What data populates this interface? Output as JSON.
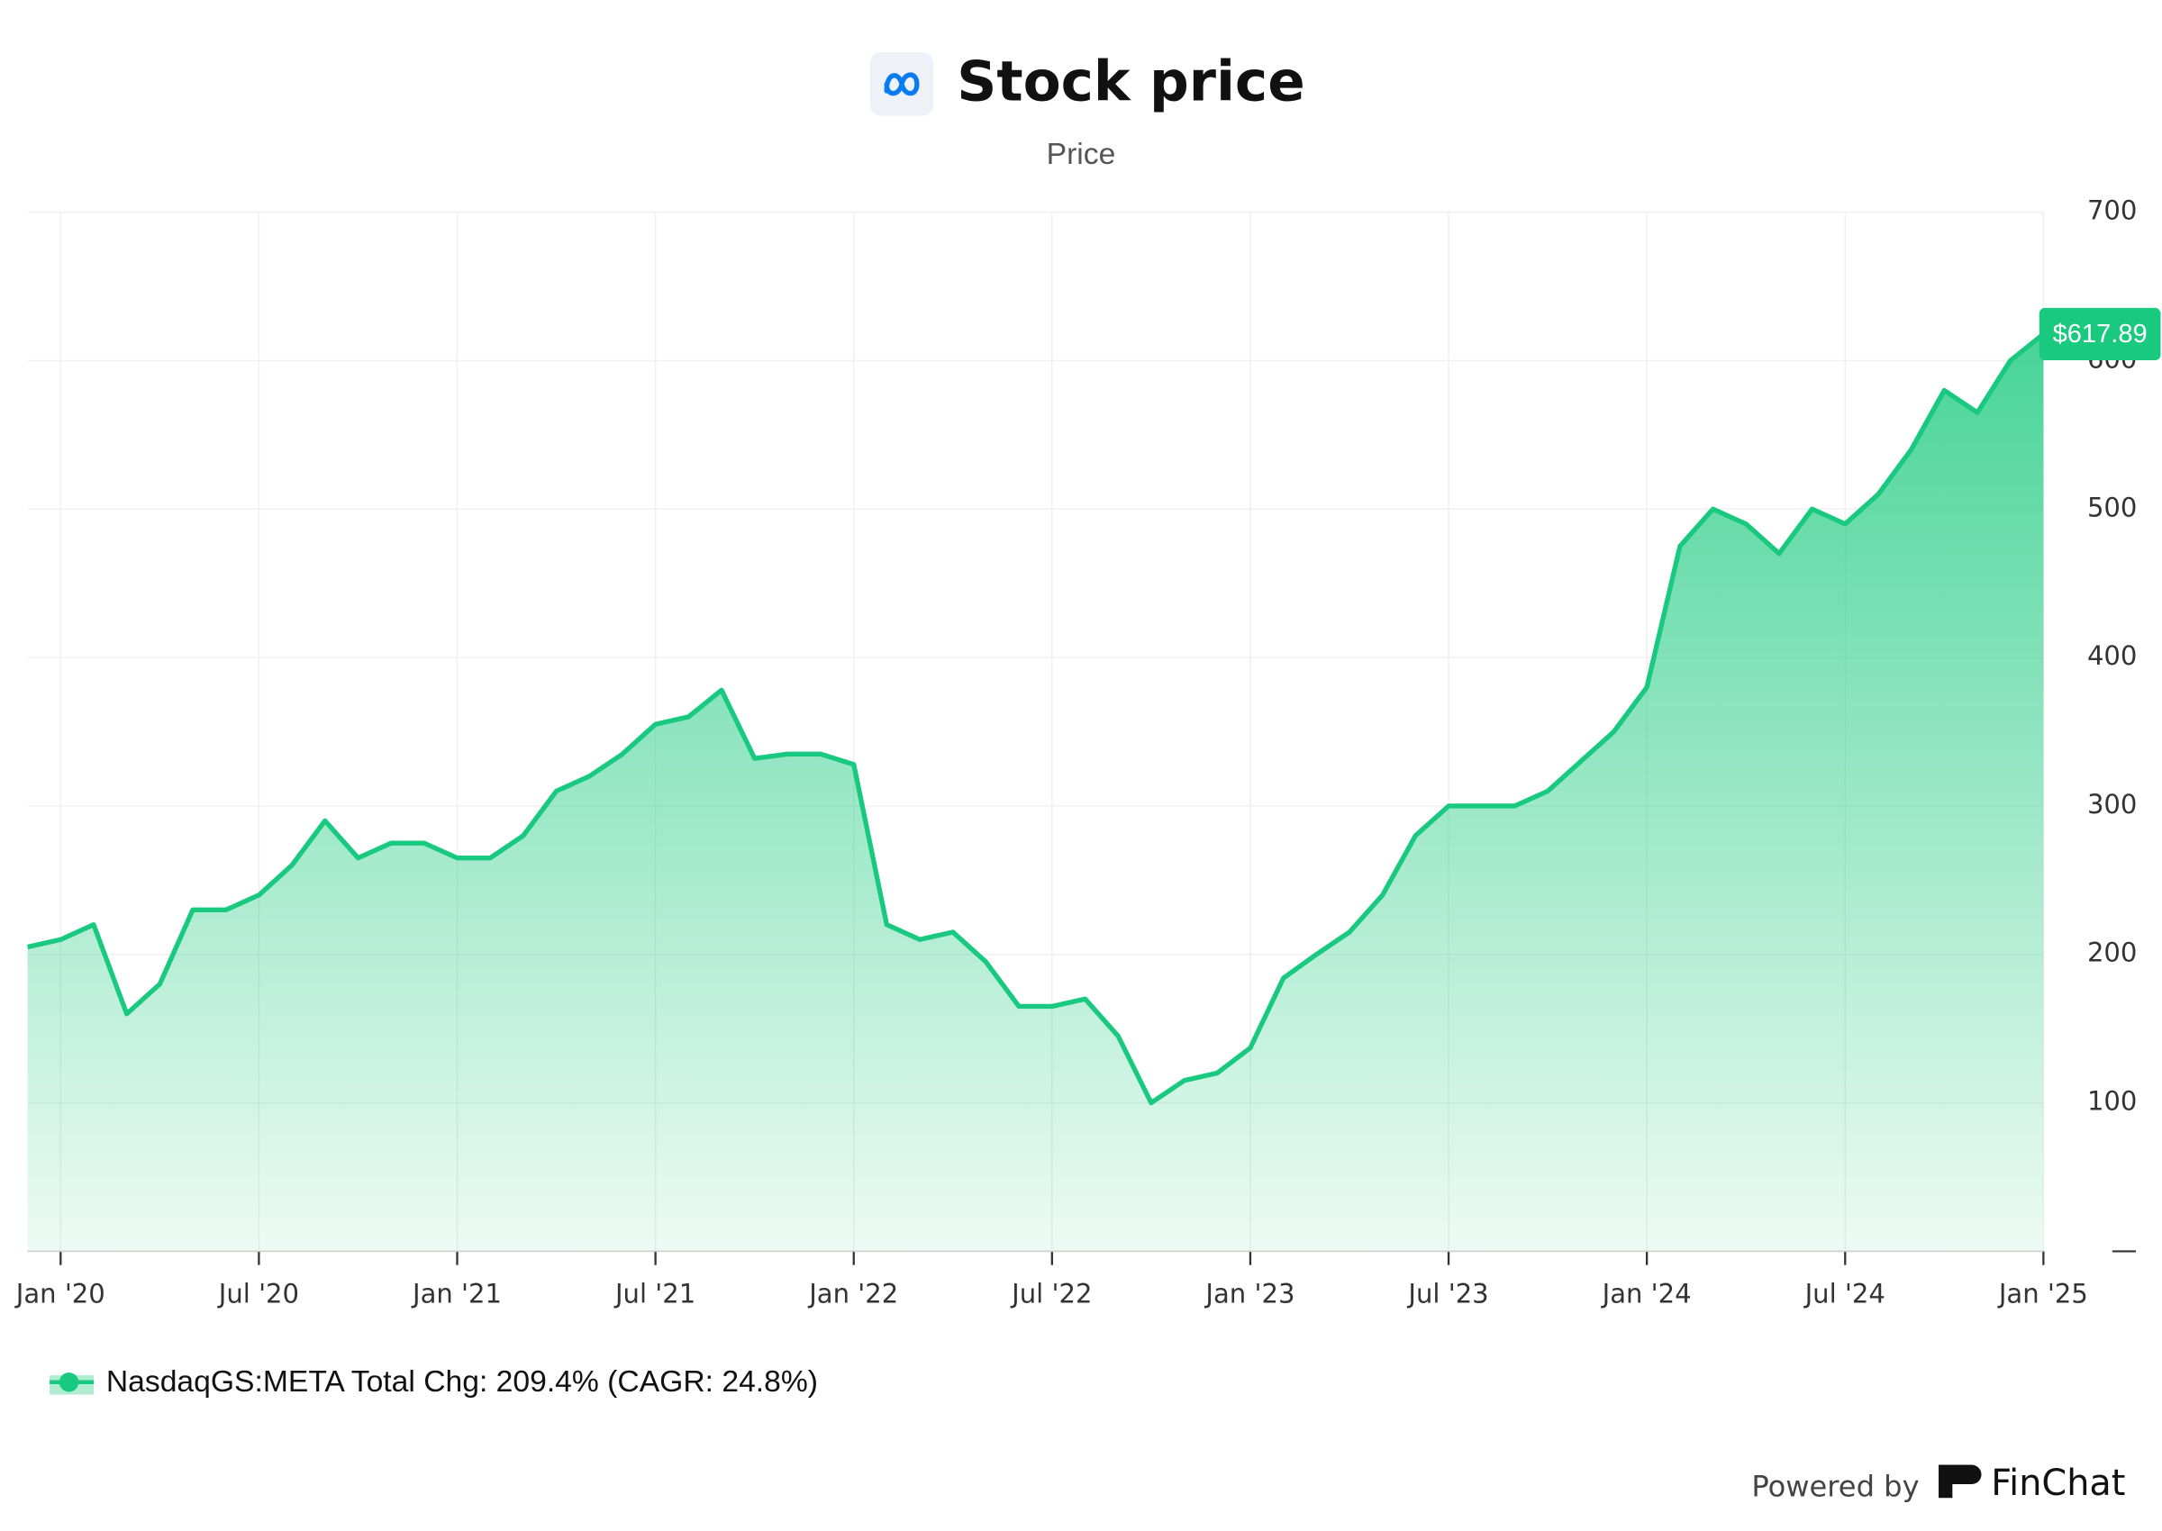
{
  "chart_data": {
    "type": "area",
    "title": "Stock price",
    "subtitle": "Price",
    "x": [
      "2019-12",
      "2020-01",
      "2020-02",
      "2020-03",
      "2020-04",
      "2020-05",
      "2020-06",
      "2020-07",
      "2020-08",
      "2020-09",
      "2020-10",
      "2020-11",
      "2020-12",
      "2021-01",
      "2021-02",
      "2021-03",
      "2021-04",
      "2021-05",
      "2021-06",
      "2021-07",
      "2021-08",
      "2021-09",
      "2021-10",
      "2021-11",
      "2021-12",
      "2022-01",
      "2022-02",
      "2022-03",
      "2022-04",
      "2022-05",
      "2022-06",
      "2022-07",
      "2022-08",
      "2022-09",
      "2022-10",
      "2022-11",
      "2022-12",
      "2023-01",
      "2023-02",
      "2023-03",
      "2023-04",
      "2023-05",
      "2023-06",
      "2023-07",
      "2023-08",
      "2023-09",
      "2023-10",
      "2023-11",
      "2023-12",
      "2024-01",
      "2024-02",
      "2024-03",
      "2024-04",
      "2024-05",
      "2024-06",
      "2024-07",
      "2024-08",
      "2024-09",
      "2024-10",
      "2024-11",
      "2024-12",
      "2025-01"
    ],
    "series": [
      {
        "name": "NasdaqGS:META Total Chg: 209.4% (CAGR: 24.8%)",
        "color": "#19c97f",
        "values": [
          205,
          210,
          220,
          160,
          180,
          230,
          230,
          240,
          260,
          290,
          265,
          275,
          275,
          265,
          265,
          280,
          310,
          320,
          335,
          355,
          360,
          378,
          332,
          335,
          335,
          328,
          220,
          210,
          215,
          195,
          165,
          165,
          170,
          145,
          100,
          115,
          120,
          137,
          184,
          200,
          215,
          240,
          280,
          300,
          300,
          300,
          310,
          330,
          350,
          380,
          475,
          500,
          490,
          470,
          500,
          490,
          510,
          540,
          580,
          565,
          600,
          617.89
        ]
      }
    ],
    "price_tag": {
      "value": 617.89,
      "label": "$617.89"
    },
    "xlim": [
      "2019-12",
      "2025-01"
    ],
    "xticks": [
      {
        "value": "2020-01",
        "label": "Jan '20"
      },
      {
        "value": "2020-07",
        "label": "Jul '20"
      },
      {
        "value": "2021-01",
        "label": "Jan '21"
      },
      {
        "value": "2021-07",
        "label": "Jul '21"
      },
      {
        "value": "2022-01",
        "label": "Jan '22"
      },
      {
        "value": "2022-07",
        "label": "Jul '22"
      },
      {
        "value": "2023-01",
        "label": "Jan '23"
      },
      {
        "value": "2023-07",
        "label": "Jul '23"
      },
      {
        "value": "2024-01",
        "label": "Jan '24"
      },
      {
        "value": "2024-07",
        "label": "Jul '24"
      },
      {
        "value": "2025-01",
        "label": "Jan '25"
      }
    ],
    "ylim": [
      0,
      700
    ],
    "yticks": [
      {
        "value": 0,
        "label": "—"
      },
      100,
      200,
      300,
      400,
      500,
      600,
      700
    ],
    "grid": true,
    "footer": {
      "powered_by": "Powered by",
      "brand": "FinChat"
    }
  }
}
